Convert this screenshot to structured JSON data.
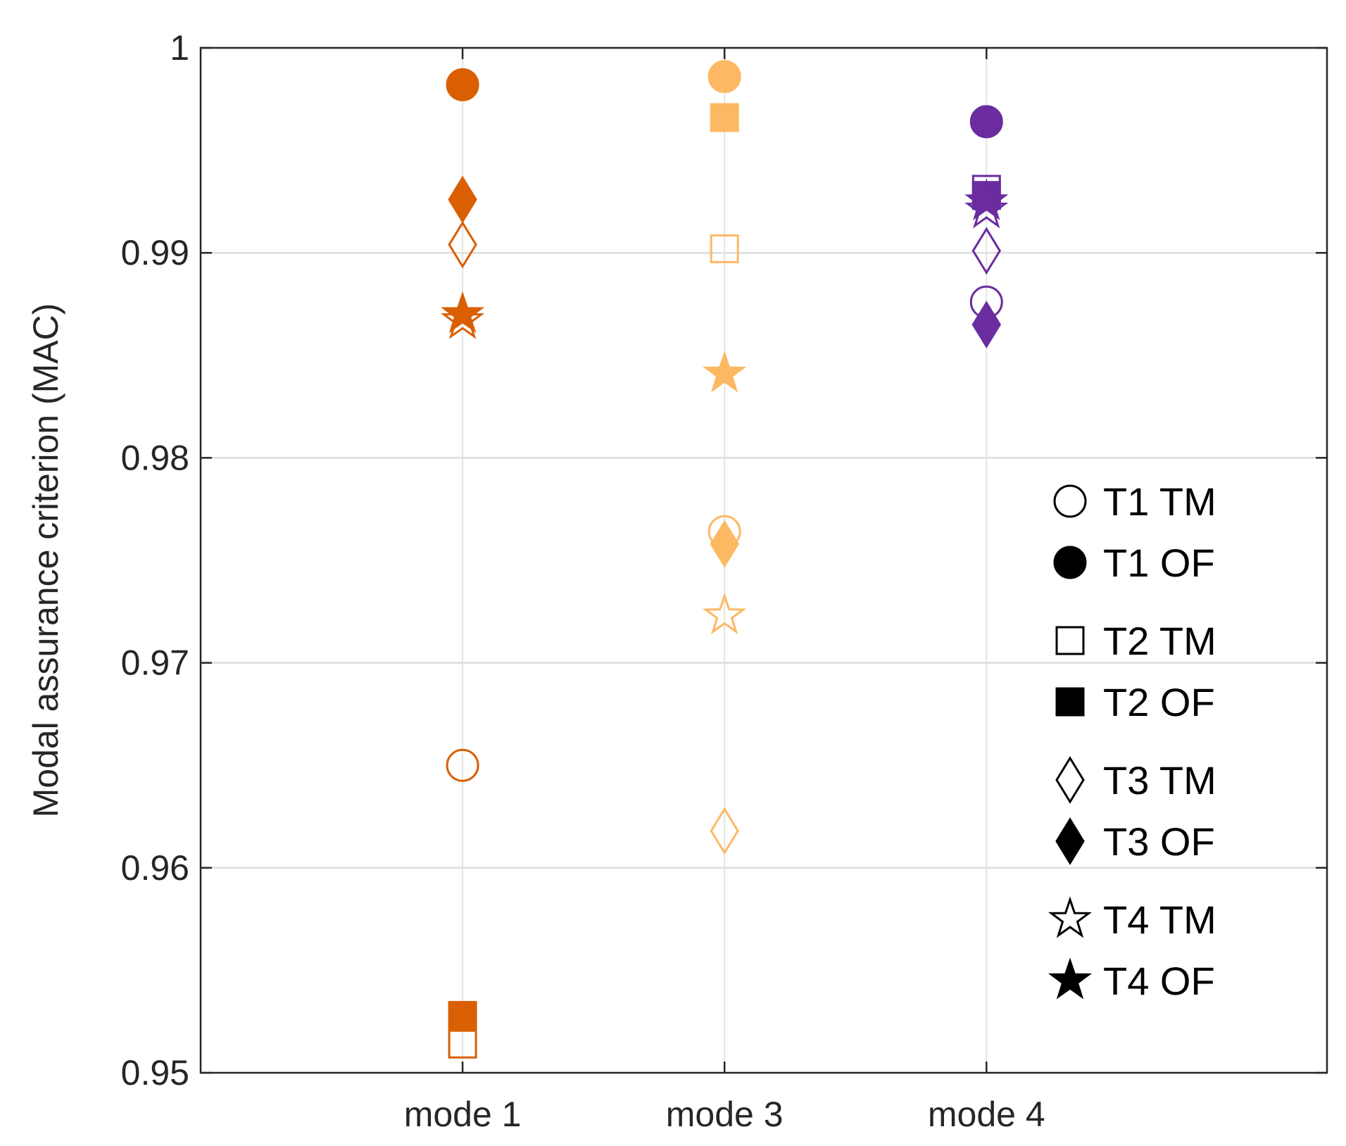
{
  "chart_data": {
    "type": "scatter",
    "title": "",
    "xlabel": "",
    "ylabel": "Modal assurance criterion (MAC)",
    "categories": [
      "mode 1",
      "mode 3",
      "mode 4"
    ],
    "ylim": [
      0.95,
      1
    ],
    "yticks": [
      "0.95",
      "0.96",
      "0.97",
      "0.98",
      "0.99",
      "1"
    ],
    "grid": true,
    "category_colors": [
      "#d95f02",
      "#fdb863",
      "#6a2c9e"
    ],
    "legend_position": "right-middle",
    "series": [
      {
        "name": "T1 TM",
        "marker": "circle",
        "filled": false,
        "values": [
          0.965,
          0.9764,
          0.9876
        ]
      },
      {
        "name": "T1 OF",
        "marker": "circle",
        "filled": true,
        "values": [
          0.9982,
          0.9986,
          0.9964
        ]
      },
      {
        "name": "T2 TM",
        "marker": "square",
        "filled": false,
        "values": [
          0.9514,
          0.9902,
          0.9931
        ]
      },
      {
        "name": "T2 OF",
        "marker": "square",
        "filled": true,
        "values": [
          0.9528,
          0.9966,
          0.9928
        ]
      },
      {
        "name": "T3 TM",
        "marker": "diamond",
        "filled": false,
        "values": [
          0.9904,
          0.9618,
          0.9901
        ]
      },
      {
        "name": "T3 OF",
        "marker": "diamond",
        "filled": true,
        "values": [
          0.9926,
          0.9758,
          0.9865
        ]
      },
      {
        "name": "T4 TM",
        "marker": "star",
        "filled": false,
        "values": [
          0.9867,
          0.9723,
          0.9921
        ]
      },
      {
        "name": "T4 OF",
        "marker": "star",
        "filled": true,
        "values": [
          0.987,
          0.9841,
          0.9925
        ]
      }
    ]
  }
}
